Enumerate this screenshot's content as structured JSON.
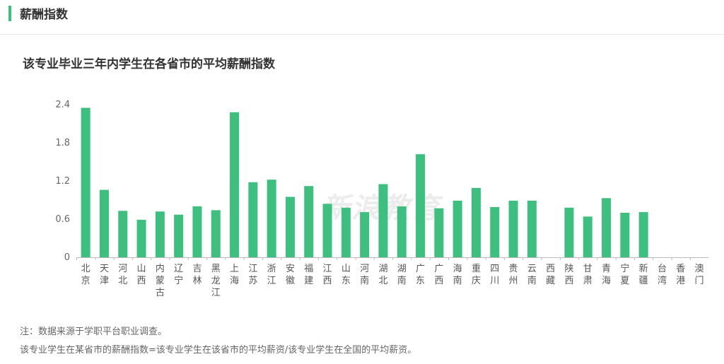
{
  "section": {
    "title": "薪酬指数"
  },
  "chart_data": {
    "type": "bar",
    "title": "该专业毕业三年内学生在各省市的平均薪酬指数",
    "xlabel": "",
    "ylabel": "",
    "ylim": [
      0,
      2.4
    ],
    "yticks": [
      "0",
      "0.6",
      "1.2",
      "1.8",
      "2.4"
    ],
    "grid": false,
    "bar_color": "#3dbf7f",
    "categories": [
      "北京",
      "天津",
      "河北",
      "山西",
      "内蒙古",
      "辽宁",
      "吉林",
      "黑龙江",
      "上海",
      "江苏",
      "浙江",
      "安徽",
      "福建",
      "江西",
      "山东",
      "河南",
      "湖北",
      "湖南",
      "广东",
      "广西",
      "海南",
      "重庆",
      "四川",
      "贵州",
      "云南",
      "西藏",
      "陕西",
      "甘肃",
      "青海",
      "宁夏",
      "新疆",
      "台湾",
      "香港",
      "澳门"
    ],
    "values": [
      2.35,
      1.06,
      0.73,
      0.59,
      0.72,
      0.67,
      0.8,
      0.74,
      2.28,
      1.18,
      1.22,
      0.95,
      1.12,
      0.84,
      0.78,
      0.71,
      1.15,
      0.8,
      1.62,
      0.77,
      0.89,
      1.09,
      0.79,
      0.89,
      0.89,
      0,
      0.78,
      0.64,
      0.93,
      0.7,
      0.71,
      0,
      0,
      0
    ]
  },
  "watermark": "新浪教育",
  "notes": {
    "line1": "注：数据来源于学职平台职业调查。",
    "line2": "该专业学生在某省市的薪酬指数=该专业学生在该省市的平均薪资/该专业学生在全国的平均薪资。"
  }
}
